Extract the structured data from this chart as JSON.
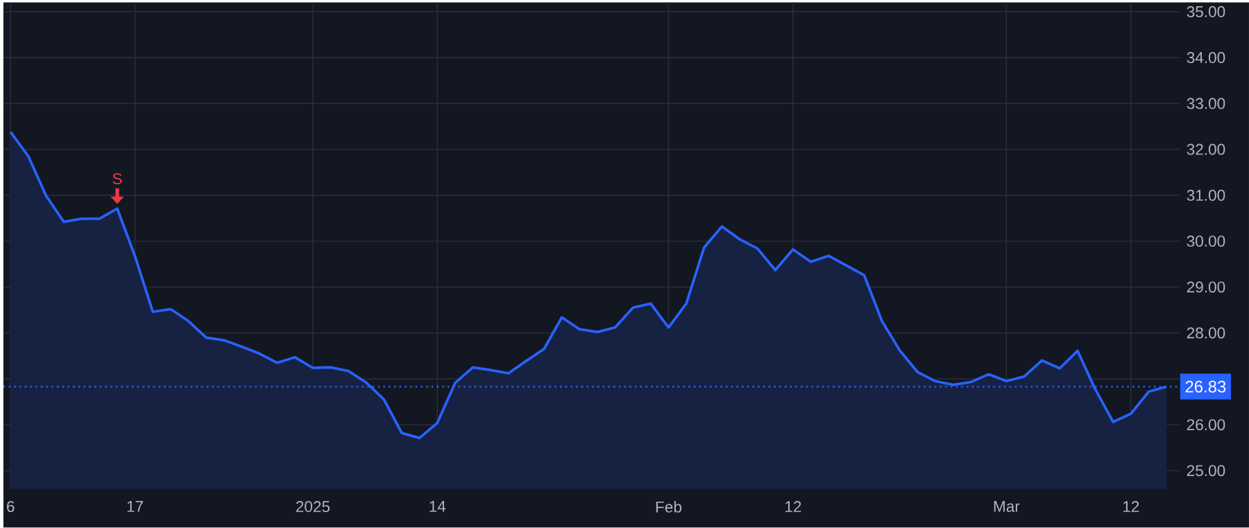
{
  "chart_data": {
    "type": "area",
    "color": "#2962ff",
    "categories": [
      "6",
      null,
      null,
      null,
      null,
      null,
      null,
      "17",
      null,
      null,
      null,
      null,
      null,
      null,
      null,
      null,
      null,
      "2025",
      null,
      null,
      null,
      null,
      null,
      null,
      "14",
      null,
      null,
      null,
      null,
      null,
      null,
      null,
      null,
      null,
      null,
      null,
      null,
      "Feb",
      null,
      null,
      null,
      null,
      null,
      null,
      "12",
      null,
      null,
      null,
      null,
      null,
      null,
      null,
      null,
      null,
      null,
      null,
      "Mar",
      null,
      null,
      null,
      null,
      null,
      null,
      "12",
      null,
      null
    ],
    "values": [
      32.38,
      31.85,
      30.99,
      30.42,
      30.49,
      30.49,
      30.71,
      29.67,
      28.46,
      28.52,
      28.26,
      27.9,
      27.84,
      27.7,
      27.55,
      27.35,
      27.47,
      27.24,
      27.25,
      27.17,
      26.92,
      26.55,
      25.82,
      25.71,
      26.04,
      26.91,
      27.25,
      27.19,
      27.12,
      27.39,
      27.65,
      28.34,
      28.08,
      28.02,
      28.12,
      28.55,
      28.64,
      28.12,
      28.64,
      29.86,
      30.32,
      30.04,
      29.84,
      29.37,
      29.82,
      29.55,
      29.68,
      29.47,
      29.26,
      28.26,
      27.62,
      27.15,
      26.95,
      26.87,
      26.93,
      27.1,
      26.95,
      27.05,
      27.4,
      27.23,
      27.61,
      26.77,
      26.06,
      26.24,
      26.72,
      26.83
    ],
    "ylim": [
      24.6,
      35.2
    ],
    "yticks": [
      {
        "value": 25,
        "label": "25.00"
      },
      {
        "value": 26,
        "label": "26.00"
      },
      {
        "value": 27,
        "label": null
      },
      {
        "value": 28,
        "label": "28.00"
      },
      {
        "value": 29,
        "label": "29.00"
      },
      {
        "value": 30,
        "label": "30.00"
      },
      {
        "value": 31,
        "label": "31.00"
      },
      {
        "value": 32,
        "label": "32.00"
      },
      {
        "value": 33,
        "label": "33.00"
      },
      {
        "value": 34,
        "label": "34.00"
      },
      {
        "value": 35,
        "label": "35.00"
      }
    ],
    "grid": true,
    "ref_lines": [
      {
        "axis": "y",
        "value": 26.83,
        "label": "26.83",
        "color": "#2962ff",
        "line_style": "dotted"
      }
    ],
    "annotations": [
      {
        "text": "S",
        "y": 30.71
      }
    ]
  }
}
